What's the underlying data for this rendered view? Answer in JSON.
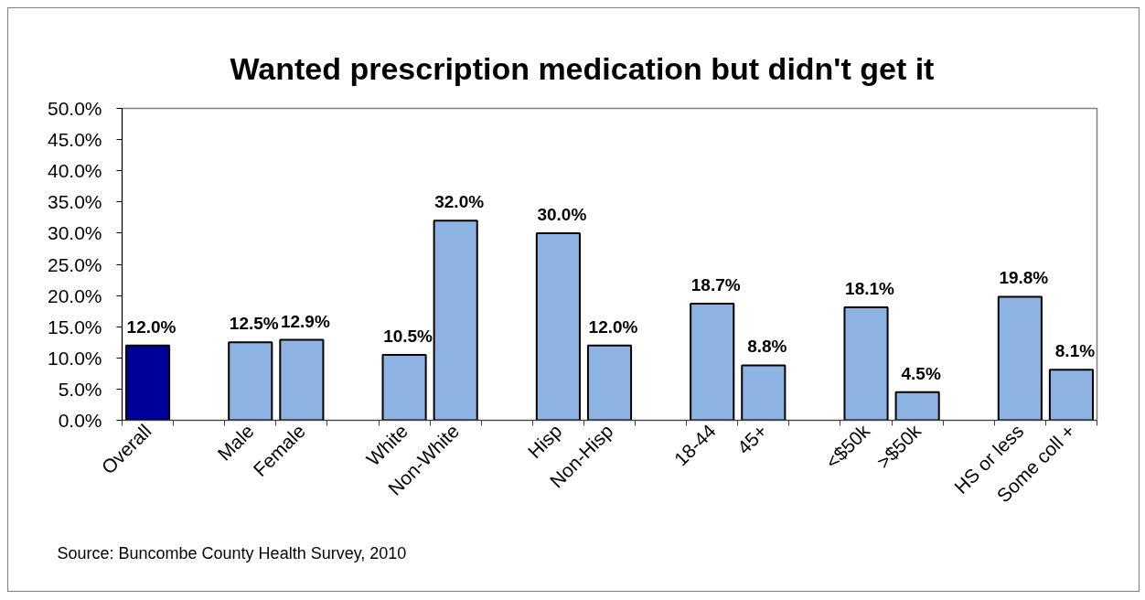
{
  "chart_data": {
    "type": "bar",
    "title": "Wanted prescription medication but didn't get it",
    "annotations": [
      "Source: Buncombe County Health Survey, 2010"
    ],
    "categories": [
      "Overall",
      null,
      "Male",
      "Female",
      null,
      "White",
      "Non-White",
      null,
      "Hisp",
      "Non-Hisp",
      null,
      "18-44",
      "45+",
      null,
      "<$50k",
      ">$50k",
      null,
      "HS or less",
      "Some coll +"
    ],
    "values": [
      12.0,
      null,
      12.5,
      12.9,
      null,
      10.5,
      32.0,
      null,
      30.0,
      12.0,
      null,
      18.7,
      8.8,
      null,
      18.1,
      4.5,
      null,
      19.8,
      8.1
    ],
    "colors": [
      "#000099",
      null,
      "#8db3e2",
      "#8db3e2",
      null,
      "#8db3e2",
      "#8db3e2",
      null,
      "#8db3e2",
      "#8db3e2",
      null,
      "#8db3e2",
      "#8db3e2",
      null,
      "#8db3e2",
      "#8db3e2",
      null,
      "#8db3e2",
      "#8db3e2"
    ],
    "value_labels": [
      "12.0%",
      null,
      "12.5%",
      "12.9%",
      null,
      "10.5%",
      "32.0%",
      null,
      "30.0%",
      "12.0%",
      null,
      "18.7%",
      "8.8%",
      null,
      "18.1%",
      "4.5%",
      null,
      "19.8%",
      "8.1%"
    ],
    "ylim": [
      0,
      50
    ],
    "yticks": [
      {
        "value": 0,
        "label": "0.0%"
      },
      {
        "value": 5,
        "label": "5.0%"
      },
      {
        "value": 10,
        "label": "10.0%"
      },
      {
        "value": 15,
        "label": "15.0%"
      },
      {
        "value": 20,
        "label": "20.0%"
      },
      {
        "value": 25,
        "label": "25.0%"
      },
      {
        "value": 30,
        "label": "30.0%"
      },
      {
        "value": 35,
        "label": "35.0%"
      },
      {
        "value": 40,
        "label": "40.0%"
      },
      {
        "value": 45,
        "label": "45.0%"
      },
      {
        "value": 50,
        "label": "50.0%"
      }
    ],
    "grid": false
  }
}
